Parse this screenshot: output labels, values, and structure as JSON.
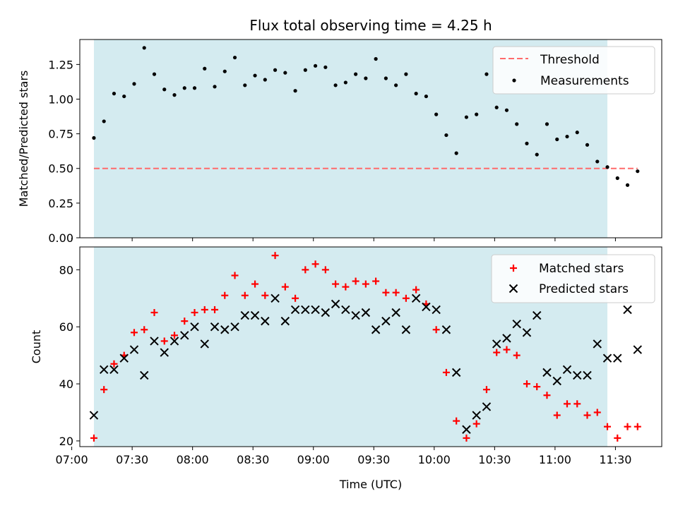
{
  "title": "Flux total observing time = 4.25 h",
  "colors": {
    "shade": "#d4ebf0",
    "threshold": "#ff6b6b",
    "matched": "#ff0000",
    "predicted": "#000000",
    "measurement": "#000000"
  },
  "chart_data": [
    {
      "type": "scatter",
      "panel": "top",
      "ylabel": "Matched/Predicted stars",
      "xlim": [
        "07:04",
        "11:53"
      ],
      "ylim": [
        0,
        1.43
      ],
      "yticks": [
        "0.00",
        "0.25",
        "0.50",
        "0.75",
        "1.00",
        "1.25"
      ],
      "shaded_span": [
        "07:11",
        "11:26"
      ],
      "grid": false,
      "legend": "top-right",
      "threshold": {
        "name": "Threshold",
        "value": 0.5,
        "x_range": [
          "07:11",
          "11:41"
        ]
      },
      "series": [
        {
          "name": "Measurements",
          "x": [
            "07:11",
            "07:16",
            "07:21",
            "07:26",
            "07:31",
            "07:36",
            "07:41",
            "07:46",
            "07:51",
            "07:56",
            "08:01",
            "08:06",
            "08:11",
            "08:16",
            "08:21",
            "08:26",
            "08:31",
            "08:36",
            "08:41",
            "08:46",
            "08:51",
            "08:56",
            "09:01",
            "09:06",
            "09:11",
            "09:16",
            "09:21",
            "09:26",
            "09:31",
            "09:36",
            "09:41",
            "09:46",
            "09:51",
            "09:56",
            "10:01",
            "10:06",
            "10:11",
            "10:16",
            "10:21",
            "10:26",
            "10:31",
            "10:36",
            "10:41",
            "10:46",
            "10:51",
            "10:56",
            "11:01",
            "11:06",
            "11:11",
            "11:16",
            "11:21",
            "11:26",
            "11:31",
            "11:36",
            "11:41"
          ],
          "values": [
            0.72,
            0.84,
            1.04,
            1.02,
            1.11,
            1.37,
            1.18,
            1.07,
            1.03,
            1.08,
            1.08,
            1.22,
            1.09,
            1.2,
            1.3,
            1.1,
            1.17,
            1.14,
            1.21,
            1.19,
            1.06,
            1.21,
            1.24,
            1.23,
            1.1,
            1.12,
            1.18,
            1.15,
            1.29,
            1.15,
            1.1,
            1.18,
            1.04,
            1.02,
            0.89,
            0.74,
            0.61,
            0.87,
            0.89,
            1.18,
            0.94,
            0.92,
            0.82,
            0.68,
            0.6,
            0.82,
            0.71,
            0.73,
            0.76,
            0.67,
            0.55,
            0.51,
            0.43,
            0.38,
            0.48
          ]
        }
      ]
    },
    {
      "type": "scatter",
      "panel": "bottom",
      "xlabel": "Time (UTC)",
      "ylabel": "Count",
      "xlim": [
        "07:04",
        "11:53"
      ],
      "ylim": [
        18,
        88
      ],
      "yticks": [
        "20",
        "40",
        "60",
        "80"
      ],
      "xticks": [
        "07:00",
        "07:30",
        "08:00",
        "08:30",
        "09:00",
        "09:30",
        "10:00",
        "10:30",
        "11:00",
        "11:30"
      ],
      "shaded_span": [
        "07:11",
        "11:26"
      ],
      "grid": false,
      "legend": "top-right",
      "x": [
        "07:11",
        "07:16",
        "07:21",
        "07:26",
        "07:31",
        "07:36",
        "07:41",
        "07:46",
        "07:51",
        "07:56",
        "08:01",
        "08:06",
        "08:11",
        "08:16",
        "08:21",
        "08:26",
        "08:31",
        "08:36",
        "08:41",
        "08:46",
        "08:51",
        "08:56",
        "09:01",
        "09:06",
        "09:11",
        "09:16",
        "09:21",
        "09:26",
        "09:31",
        "09:36",
        "09:41",
        "09:46",
        "09:51",
        "09:56",
        "10:01",
        "10:06",
        "10:11",
        "10:16",
        "10:21",
        "10:26",
        "10:31",
        "10:36",
        "10:41",
        "10:46",
        "10:51",
        "10:56",
        "11:01",
        "11:06",
        "11:11",
        "11:16",
        "11:21",
        "11:26",
        "11:31",
        "11:36",
        "11:41"
      ],
      "series": [
        {
          "name": "Matched stars",
          "marker": "+",
          "values": [
            21,
            38,
            47,
            50,
            58,
            59,
            65,
            55,
            57,
            62,
            65,
            66,
            66,
            71,
            78,
            71,
            75,
            71,
            85,
            74,
            70,
            80,
            82,
            80,
            75,
            74,
            76,
            75,
            76,
            72,
            72,
            70,
            73,
            68,
            59,
            44,
            27,
            21,
            26,
            38,
            51,
            52,
            50,
            40,
            39,
            36,
            29,
            33,
            33,
            29,
            30,
            25,
            21,
            25,
            25
          ]
        },
        {
          "name": "Predicted stars",
          "marker": "x",
          "values": [
            29,
            45,
            45,
            49,
            52,
            43,
            55,
            51,
            55,
            57,
            60,
            54,
            60,
            59,
            60,
            64,
            64,
            62,
            70,
            62,
            66,
            66,
            66,
            65,
            68,
            66,
            64,
            65,
            59,
            62,
            65,
            59,
            70,
            67,
            66,
            59,
            44,
            24,
            29,
            32,
            54,
            56,
            61,
            58,
            64,
            44,
            41,
            45,
            43,
            43,
            54,
            49,
            49,
            66,
            52
          ]
        }
      ]
    }
  ]
}
